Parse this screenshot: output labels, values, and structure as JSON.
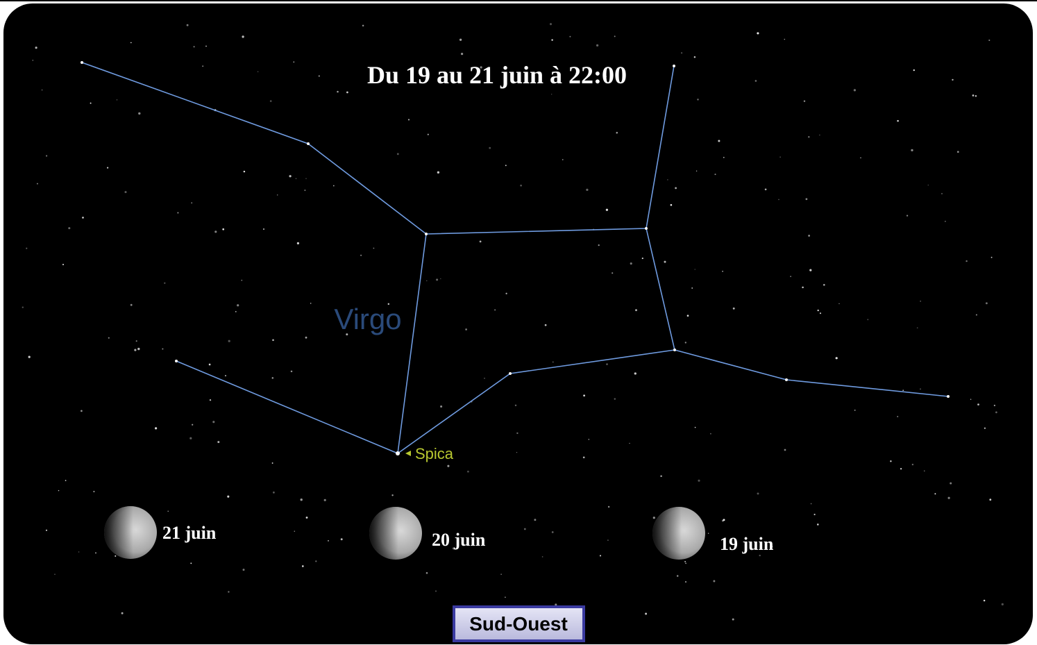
{
  "title": "Du 19 au 21 juin à 22:00",
  "constellation": "Virgo",
  "star": "Spica",
  "moons": [
    {
      "label": "21 juin"
    },
    {
      "label": "20 juin"
    },
    {
      "label": "19 juin"
    }
  ],
  "direction": "Sud-Ouest"
}
